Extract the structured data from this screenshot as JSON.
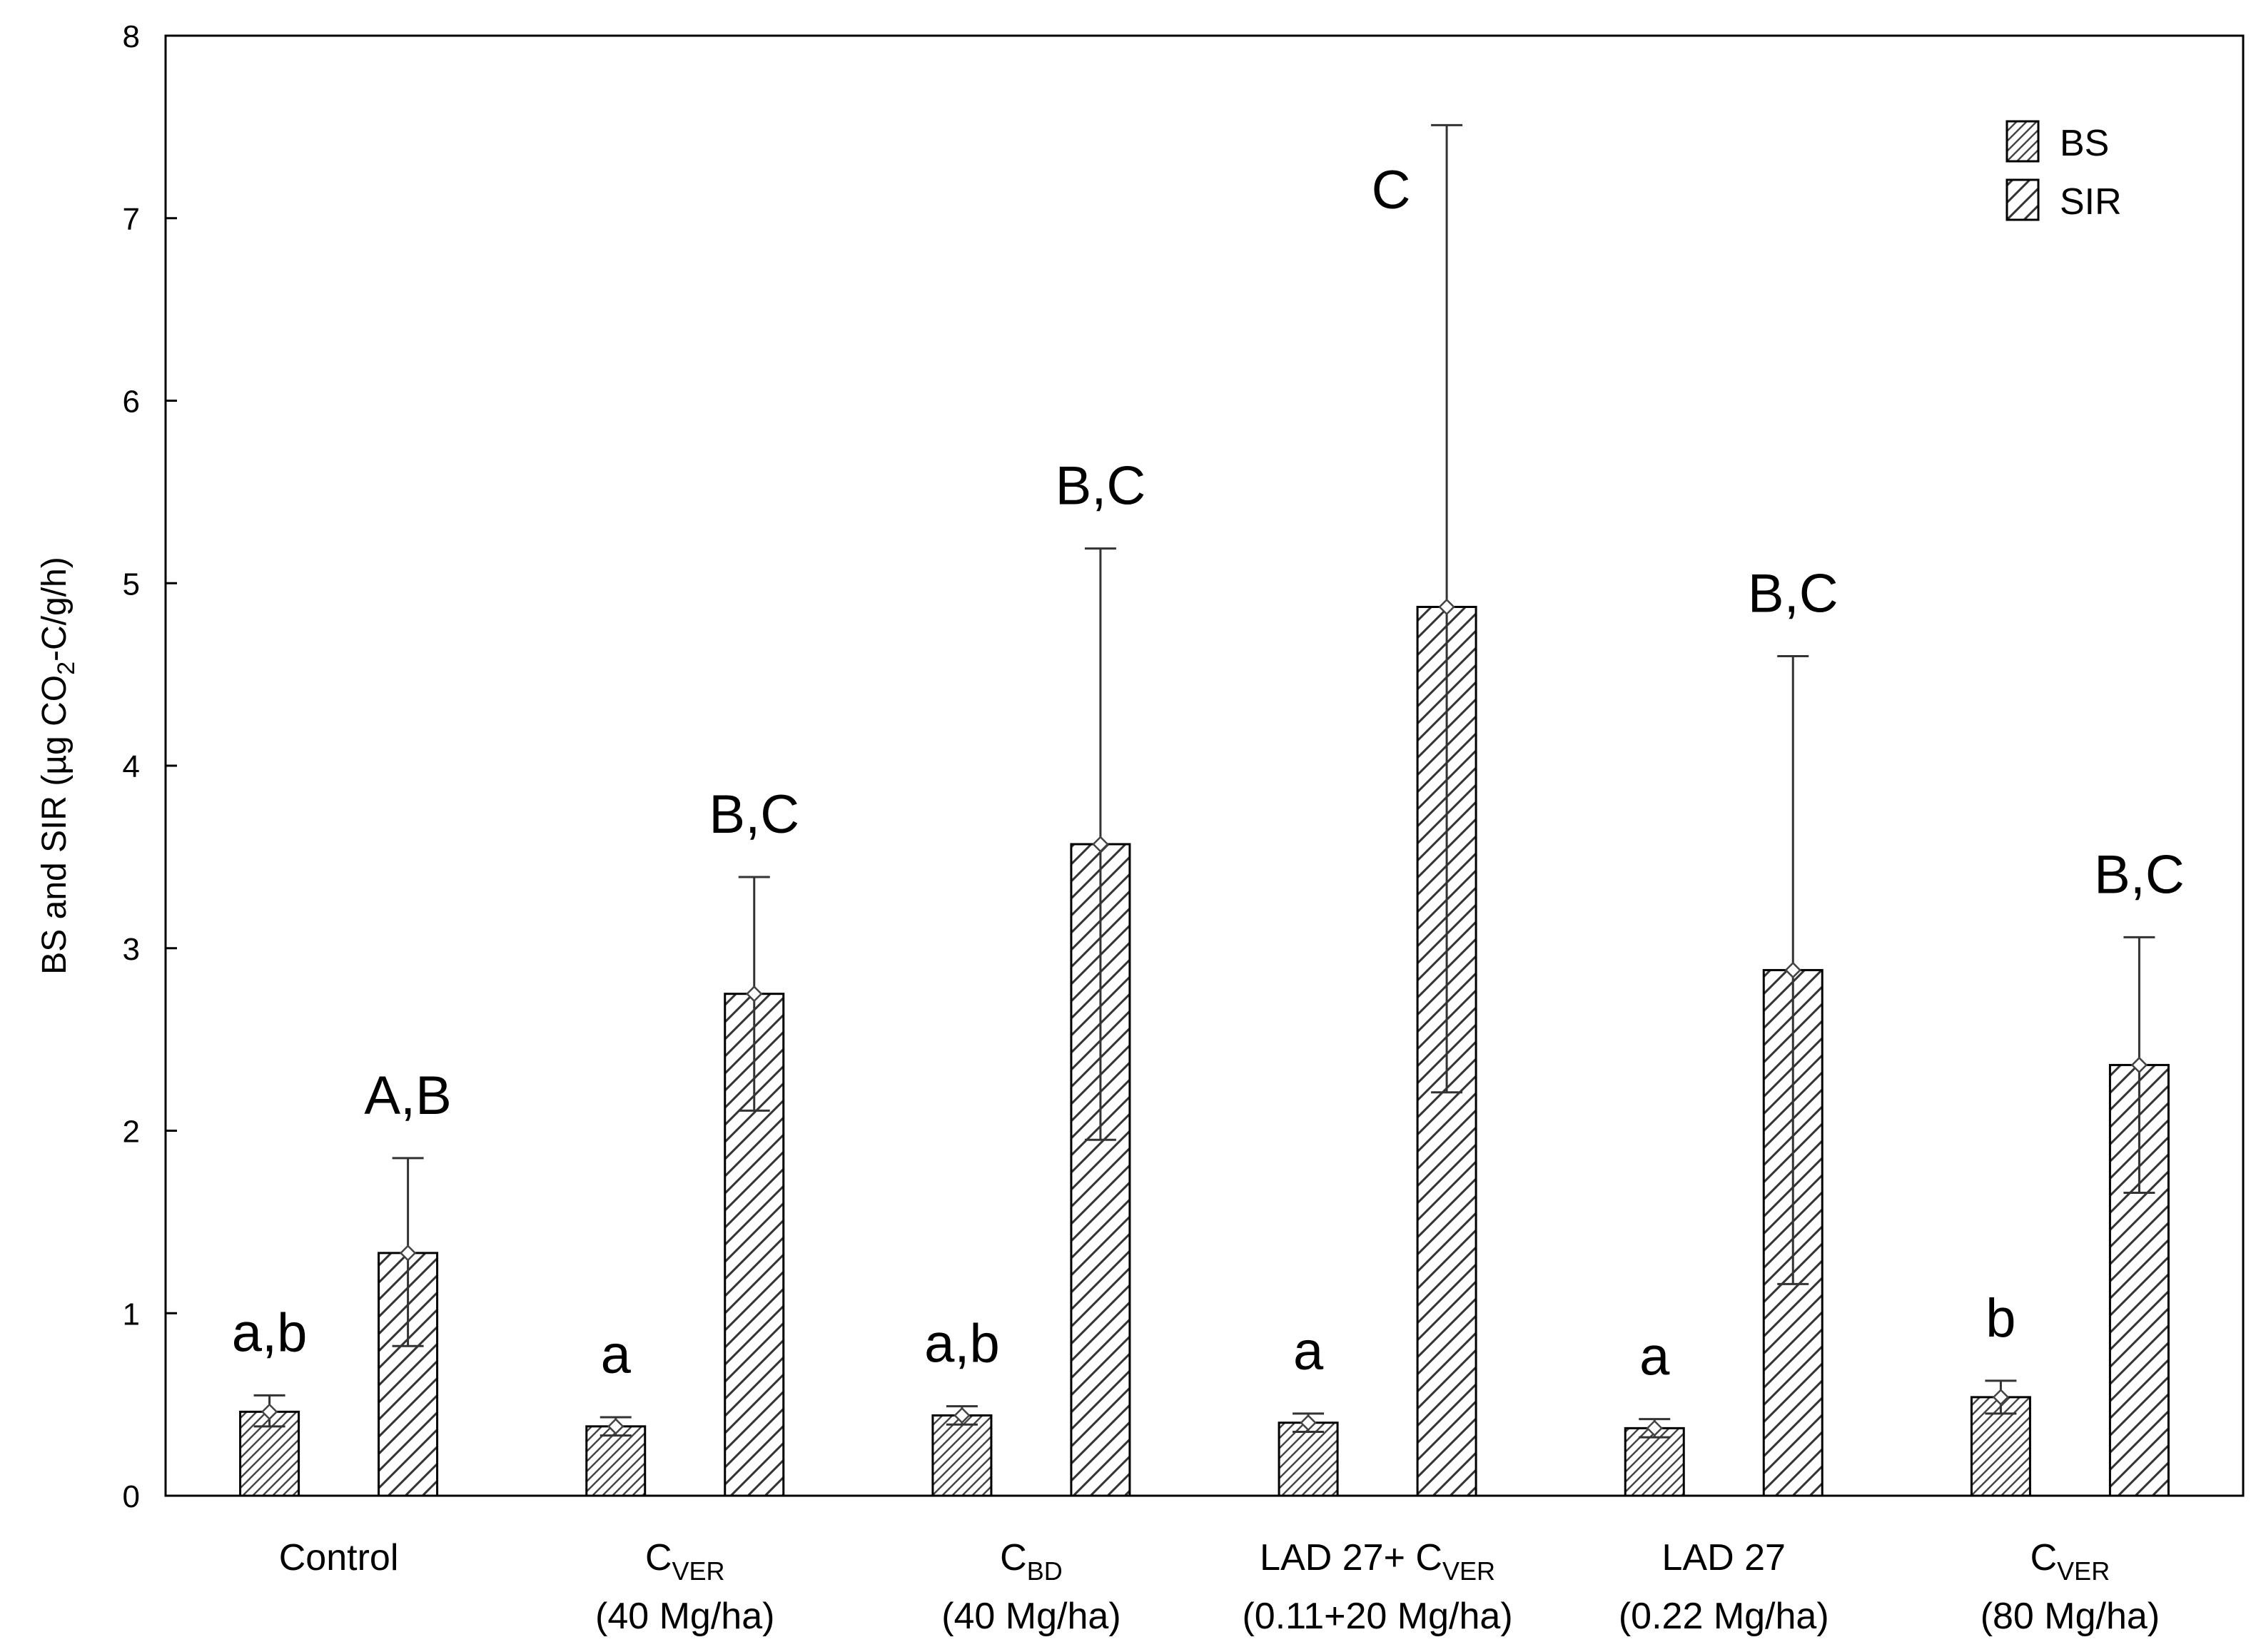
{
  "chart_data": {
    "type": "bar",
    "title": "",
    "xlabel": "",
    "ylabel": {
      "pre": "BS and SIR (µg CO",
      "sub": "2",
      "post": "-C/g/h)"
    },
    "ylim": [
      0,
      8
    ],
    "yticks": [
      "0",
      "1",
      "2",
      "3",
      "4",
      "5",
      "6",
      "7",
      "8"
    ],
    "grid": false,
    "legend_position": "top-right",
    "categories": [
      {
        "line1_main": "Control",
        "line1_sub": "",
        "line1_post": "",
        "line2": ""
      },
      {
        "line1_main": "C",
        "line1_sub": "VER",
        "line1_post": "",
        "line2": "(40 Mg/ha)"
      },
      {
        "line1_main": "C",
        "line1_sub": "BD",
        "line1_post": "",
        "line2": "(40 Mg/ha)"
      },
      {
        "line1_main": "LAD 27+ C",
        "line1_sub": "VER",
        "line1_post": "",
        "line2": "(0.11+20 Mg/ha)"
      },
      {
        "line1_main": "LAD 27",
        "line1_sub": "",
        "line1_post": "",
        "line2": "(0.22 Mg/ha)"
      },
      {
        "line1_main": "C",
        "line1_sub": "VER",
        "line1_post": "",
        "line2": "(80 Mg/ha)"
      }
    ],
    "series": [
      {
        "name": "BS",
        "pattern": "dense",
        "values": [
          0.46,
          0.38,
          0.44,
          0.4,
          0.37,
          0.54
        ],
        "err_low": [
          0.38,
          0.33,
          0.39,
          0.35,
          0.32,
          0.45
        ],
        "err_high": [
          0.55,
          0.43,
          0.49,
          0.45,
          0.42,
          0.63
        ],
        "letters": [
          "a,b",
          "a",
          "a,b",
          "a",
          "a",
          "b"
        ]
      },
      {
        "name": "SIR",
        "pattern": "wide",
        "values": [
          1.33,
          2.75,
          3.57,
          4.87,
          2.88,
          2.36
        ],
        "err_low": [
          0.82,
          2.11,
          1.95,
          2.21,
          1.16,
          1.66
        ],
        "err_high": [
          1.85,
          3.39,
          5.19,
          7.51,
          4.6,
          3.06
        ],
        "letters": [
          "A,B",
          "B,C",
          "B,C",
          "C",
          "B,C",
          "B,C"
        ]
      }
    ]
  }
}
